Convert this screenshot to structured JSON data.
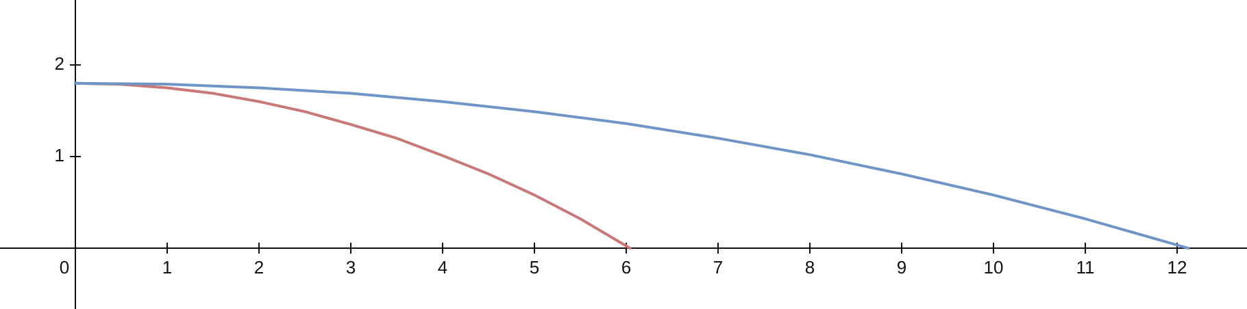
{
  "chart_data": {
    "type": "line",
    "title": "",
    "xlabel": "",
    "ylabel": "",
    "xlim": [
      0,
      12.7
    ],
    "ylim": [
      -0.65,
      2.7
    ],
    "grid": false,
    "x_ticks": [
      0,
      1,
      2,
      3,
      4,
      5,
      6,
      7,
      8,
      9,
      10,
      11,
      12
    ],
    "x_tick_labels": [
      "0",
      "1",
      "2",
      "3",
      "4",
      "5",
      "6",
      "7",
      "8",
      "9",
      "10",
      "11",
      "12"
    ],
    "y_ticks": [
      1,
      2
    ],
    "y_tick_labels": [
      "1",
      "2"
    ],
    "series": [
      {
        "color": "#c97878",
        "x": [
          0,
          0.5,
          1,
          1.5,
          2,
          2.5,
          3,
          3.5,
          4,
          4.5,
          5,
          5.5,
          6.04
        ],
        "y": [
          1.8,
          1.788,
          1.75,
          1.69,
          1.6,
          1.49,
          1.35,
          1.2,
          1.01,
          0.81,
          0.58,
          0.32,
          0.0
        ]
      },
      {
        "color": "#6f95c7",
        "x": [
          0,
          1,
          2,
          3,
          4,
          5,
          6,
          7,
          8,
          9,
          10,
          11,
          12.12
        ],
        "y": [
          1.8,
          1.79,
          1.75,
          1.69,
          1.6,
          1.49,
          1.36,
          1.2,
          1.02,
          0.81,
          0.58,
          0.32,
          0.0
        ]
      }
    ]
  }
}
